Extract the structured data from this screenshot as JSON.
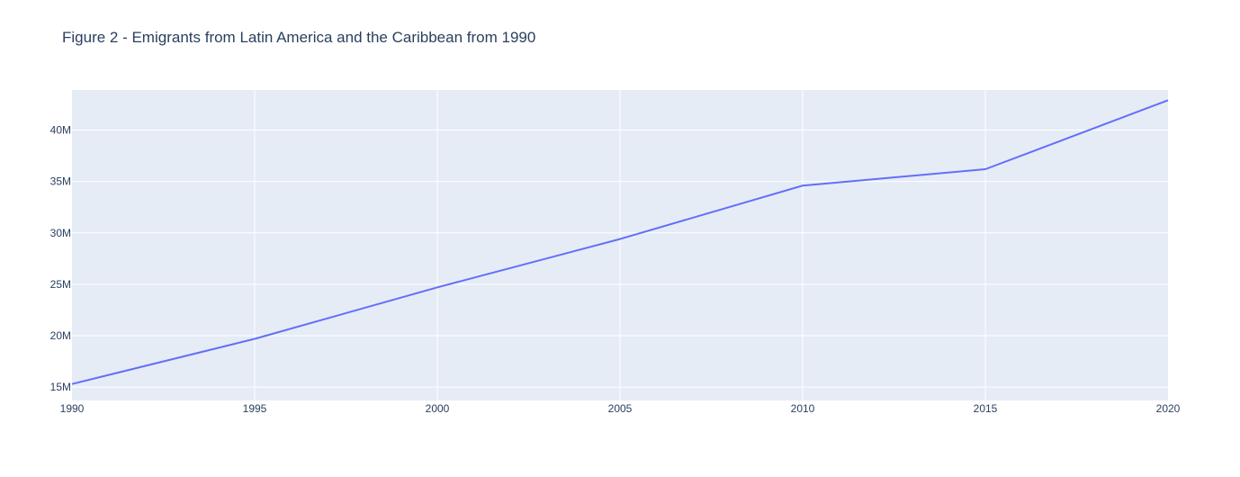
{
  "chart_data": {
    "type": "line",
    "title": "Figure 2 - Emigrants from Latin America and the Caribbean from 1990",
    "xlabel": "",
    "ylabel": "",
    "x": [
      1990,
      1995,
      2000,
      2005,
      2010,
      2015,
      2020
    ],
    "series": [
      {
        "values": [
          15.3,
          19.7,
          24.7,
          29.4,
          34.6,
          36.2,
          42.9
        ]
      }
    ],
    "xlim": [
      1990,
      2020
    ],
    "ylim": [
      13.7,
      43.9
    ],
    "x_ticks": [
      1990,
      1995,
      2000,
      2005,
      2010,
      2015,
      2020
    ],
    "x_tick_labels": [
      "1990",
      "1995",
      "2000",
      "2005",
      "2010",
      "2015",
      "2020"
    ],
    "y_ticks": [
      15,
      20,
      25,
      30,
      35,
      40
    ],
    "y_tick_labels": [
      "15M",
      "20M",
      "25M",
      "30M",
      "35M",
      "40M"
    ],
    "grid": true,
    "legend": "none",
    "colors": {
      "plot_background": "#e5ecf6",
      "grid": "#ffffff",
      "line": "#636efa",
      "text": "#2a3f5f"
    }
  }
}
